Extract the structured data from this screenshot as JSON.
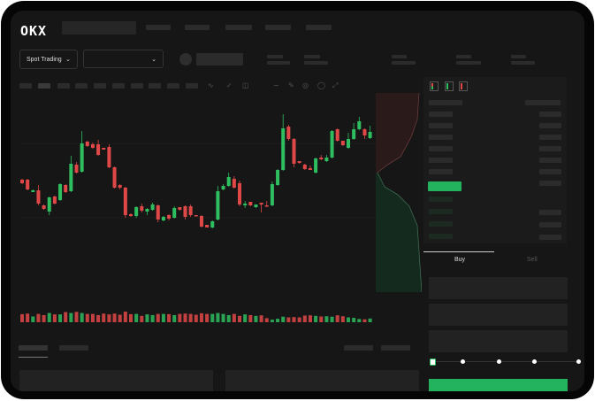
{
  "header": {
    "logo": "OKX",
    "nav_items": [
      "",
      "",
      "",
      "",
      ""
    ]
  },
  "toolbar": {
    "market_type": "Spot Trading",
    "pair_select": "",
    "chart_tools": [
      "indicator-icon",
      "candle-type-icon",
      "timeframe-icon",
      "line-tool-icon",
      "ruler-icon",
      "camera-icon",
      "settings-icon",
      "fullscreen-icon"
    ]
  },
  "order_book": {
    "view_icons": [
      "book-both-icon",
      "book-bids-icon",
      "book-asks-icon"
    ]
  },
  "trade_form": {
    "tabs": [
      "Buy",
      "Sell"
    ],
    "active_tab": "Buy",
    "slider_percent": 0,
    "buy_button_label": ""
  },
  "colors": {
    "up": "#2ebd5f",
    "down": "#e04848",
    "accent": "#23b25e",
    "background": "#161616"
  },
  "chart_data": {
    "type": "candlestick",
    "title": "",
    "candles": [
      [
        57,
        58,
        52,
        53
      ],
      [
        57,
        58,
        45,
        46
      ],
      [
        43,
        46,
        43,
        45
      ],
      [
        45,
        51,
        28,
        30
      ],
      [
        28,
        29,
        23,
        24
      ],
      [
        21,
        38,
        17,
        37
      ],
      [
        38,
        39,
        29,
        30
      ],
      [
        34,
        53,
        33,
        52
      ],
      [
        51,
        52,
        42,
        43
      ],
      [
        44,
        84,
        43,
        75
      ],
      [
        74,
        77,
        64,
        65
      ],
      [
        66,
        112,
        65,
        98
      ],
      [
        100,
        101,
        94,
        95
      ],
      [
        97,
        99,
        92,
        93
      ],
      [
        97,
        102,
        84,
        85
      ],
      [
        93,
        93,
        91,
        91
      ],
      [
        94,
        97,
        70,
        71
      ],
      [
        71,
        72,
        47,
        48
      ],
      [
        51,
        52,
        46,
        48
      ],
      [
        48,
        49,
        14,
        17
      ],
      [
        18,
        19,
        15,
        16
      ],
      [
        16,
        27,
        14,
        26
      ],
      [
        27,
        30,
        20,
        22
      ],
      [
        21,
        25,
        17,
        24
      ],
      [
        23,
        31,
        22,
        29
      ],
      [
        28,
        29,
        9,
        12
      ],
      [
        11,
        16,
        10,
        15
      ],
      [
        17,
        18,
        11,
        13
      ],
      [
        14,
        27,
        13,
        25
      ],
      [
        26,
        26,
        22,
        23
      ],
      [
        27,
        28,
        12,
        15
      ],
      [
        27,
        29,
        15,
        17
      ],
      [
        17,
        17,
        16,
        16
      ],
      [
        16,
        17,
        3,
        4
      ],
      [
        6,
        6,
        3,
        3
      ],
      [
        3,
        11,
        2,
        10
      ],
      [
        12,
        50,
        11,
        44
      ],
      [
        46,
        52,
        45,
        50
      ],
      [
        50,
        65,
        49,
        60
      ],
      [
        58,
        61,
        47,
        48
      ],
      [
        53,
        56,
        27,
        29
      ],
      [
        28,
        33,
        25,
        30
      ],
      [
        32,
        32,
        27,
        28
      ],
      [
        26,
        29,
        25,
        29
      ],
      [
        31,
        31,
        20,
        29
      ],
      [
        28,
        33,
        27,
        27
      ],
      [
        28,
        55,
        27,
        52
      ],
      [
        51,
        69,
        50,
        68
      ],
      [
        68,
        131,
        67,
        115
      ],
      [
        117,
        119,
        101,
        103
      ],
      [
        103,
        104,
        71,
        75
      ],
      [
        78,
        78,
        75,
        76
      ],
      [
        74,
        75,
        68,
        69
      ],
      [
        70,
        73,
        68,
        68
      ],
      [
        65,
        82,
        64,
        81
      ],
      [
        82,
        85,
        79,
        80
      ],
      [
        78,
        85,
        77,
        82
      ],
      [
        82,
        113,
        81,
        112
      ],
      [
        114,
        115,
        100,
        101
      ],
      [
        101,
        101,
        95,
        96
      ],
      [
        93,
        110,
        92,
        103
      ],
      [
        103,
        121,
        102,
        114
      ],
      [
        114,
        128,
        113,
        123
      ],
      [
        114,
        115,
        103,
        107
      ],
      [
        104,
        118,
        103,
        111
      ]
    ],
    "volume": [
      70,
      75,
      50,
      72,
      62,
      80,
      68,
      68,
      88,
      80,
      90,
      80,
      72,
      72,
      62,
      75,
      68,
      75,
      65,
      92,
      70,
      72,
      55,
      68,
      62,
      72,
      72,
      70,
      62,
      72,
      75,
      72,
      65,
      78,
      72,
      72,
      80,
      72,
      62,
      72,
      55,
      68,
      62,
      55,
      60,
      35,
      22,
      30,
      48,
      42,
      45,
      42,
      58,
      60,
      55,
      50,
      52,
      48,
      60,
      52,
      42,
      38,
      28,
      25,
      32
    ]
  }
}
